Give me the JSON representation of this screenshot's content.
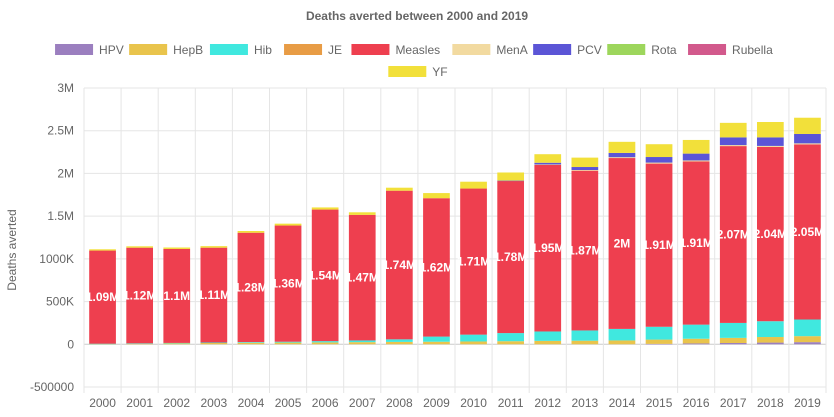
{
  "chart_data": {
    "type": "bar",
    "stacked": true,
    "title": "Deaths averted between 2000 and 2019",
    "ylabel": "Deaths averted",
    "xlabel": "",
    "ylim": [
      -500000,
      3000000
    ],
    "ytick_values": [
      -500000,
      0,
      500000,
      1000000,
      1500000,
      2000000,
      2500000,
      3000000
    ],
    "ytick_labels": [
      "-500000",
      "0",
      "500K",
      "1000K",
      "1.5M",
      "2M",
      "2.5M",
      "3M"
    ],
    "grid": true,
    "legend_position": "top",
    "categories": [
      "2000",
      "2001",
      "2002",
      "2003",
      "2004",
      "2005",
      "2006",
      "2007",
      "2008",
      "2009",
      "2010",
      "2011",
      "2012",
      "2013",
      "2014",
      "2015",
      "2016",
      "2017",
      "2018",
      "2019"
    ],
    "series": [
      {
        "name": "HPV",
        "color": "#9B7FBF",
        "values": [
          0,
          0,
          0,
          0,
          0,
          0,
          0,
          0,
          0,
          0,
          0,
          0,
          0,
          0,
          0,
          5000,
          10000,
          15000,
          20000,
          25000
        ]
      },
      {
        "name": "HepB",
        "color": "#E9C44C",
        "values": [
          5000,
          8000,
          12000,
          15000,
          18000,
          20000,
          22000,
          25000,
          28000,
          30000,
          33000,
          36000,
          40000,
          42000,
          45000,
          50000,
          55000,
          60000,
          65000,
          70000
        ]
      },
      {
        "name": "Hib",
        "color": "#40E8DF",
        "values": [
          2000,
          3000,
          4000,
          6000,
          8000,
          10000,
          15000,
          20000,
          30000,
          60000,
          80000,
          95000,
          110000,
          120000,
          135000,
          150000,
          165000,
          175000,
          185000,
          195000
        ]
      },
      {
        "name": "JE",
        "color": "#E89C45",
        "values": [
          0,
          0,
          0,
          0,
          0,
          0,
          0,
          0,
          0,
          0,
          0,
          0,
          0,
          0,
          0,
          0,
          0,
          0,
          0,
          0
        ]
      },
      {
        "name": "Measles",
        "color": "#EE3F4F",
        "values": [
          1090000,
          1120000,
          1100000,
          1110000,
          1280000,
          1360000,
          1540000,
          1470000,
          1740000,
          1620000,
          1710000,
          1780000,
          1950000,
          1870000,
          2000000,
          1910000,
          1910000,
          2070000,
          2040000,
          2050000
        ],
        "labels": [
          "1.09M",
          "1.12M",
          "1.1M",
          "1.11M",
          "1.28M",
          "1.36M",
          "1.54M",
          "1.47M",
          "1.74M",
          "1.62M",
          "1.71M",
          "1.78M",
          "1.95M",
          "1.87M",
          "2M",
          "1.91M",
          "1.91M",
          "2.07M",
          "2.04M",
          "2.05M"
        ]
      },
      {
        "name": "MenA",
        "color": "#F2DAA0",
        "values": [
          0,
          0,
          0,
          0,
          0,
          0,
          0,
          0,
          0,
          0,
          0,
          0,
          5000,
          8000,
          10000,
          12000,
          12000,
          12000,
          12000,
          12000
        ]
      },
      {
        "name": "PCV",
        "color": "#5B55D6",
        "values": [
          0,
          0,
          0,
          0,
          0,
          0,
          0,
          0,
          0,
          0,
          0,
          5000,
          20000,
          35000,
          50000,
          65000,
          80000,
          90000,
          100000,
          110000
        ]
      },
      {
        "name": "Rota",
        "color": "#9DD65C",
        "values": [
          0,
          0,
          0,
          0,
          0,
          0,
          0,
          0,
          0,
          0,
          0,
          0,
          0,
          0,
          0,
          0,
          0,
          0,
          0,
          0
        ]
      },
      {
        "name": "Rubella",
        "color": "#D2598C",
        "values": [
          0,
          0,
          0,
          0,
          0,
          0,
          0,
          0,
          0,
          0,
          0,
          0,
          0,
          0,
          0,
          0,
          0,
          0,
          0,
          0
        ]
      },
      {
        "name": "YF",
        "color": "#F2E03A",
        "values": [
          15000,
          16000,
          17000,
          18000,
          20000,
          22000,
          25000,
          30000,
          35000,
          60000,
          80000,
          95000,
          100000,
          110000,
          130000,
          150000,
          160000,
          170000,
          180000,
          190000
        ]
      }
    ]
  }
}
